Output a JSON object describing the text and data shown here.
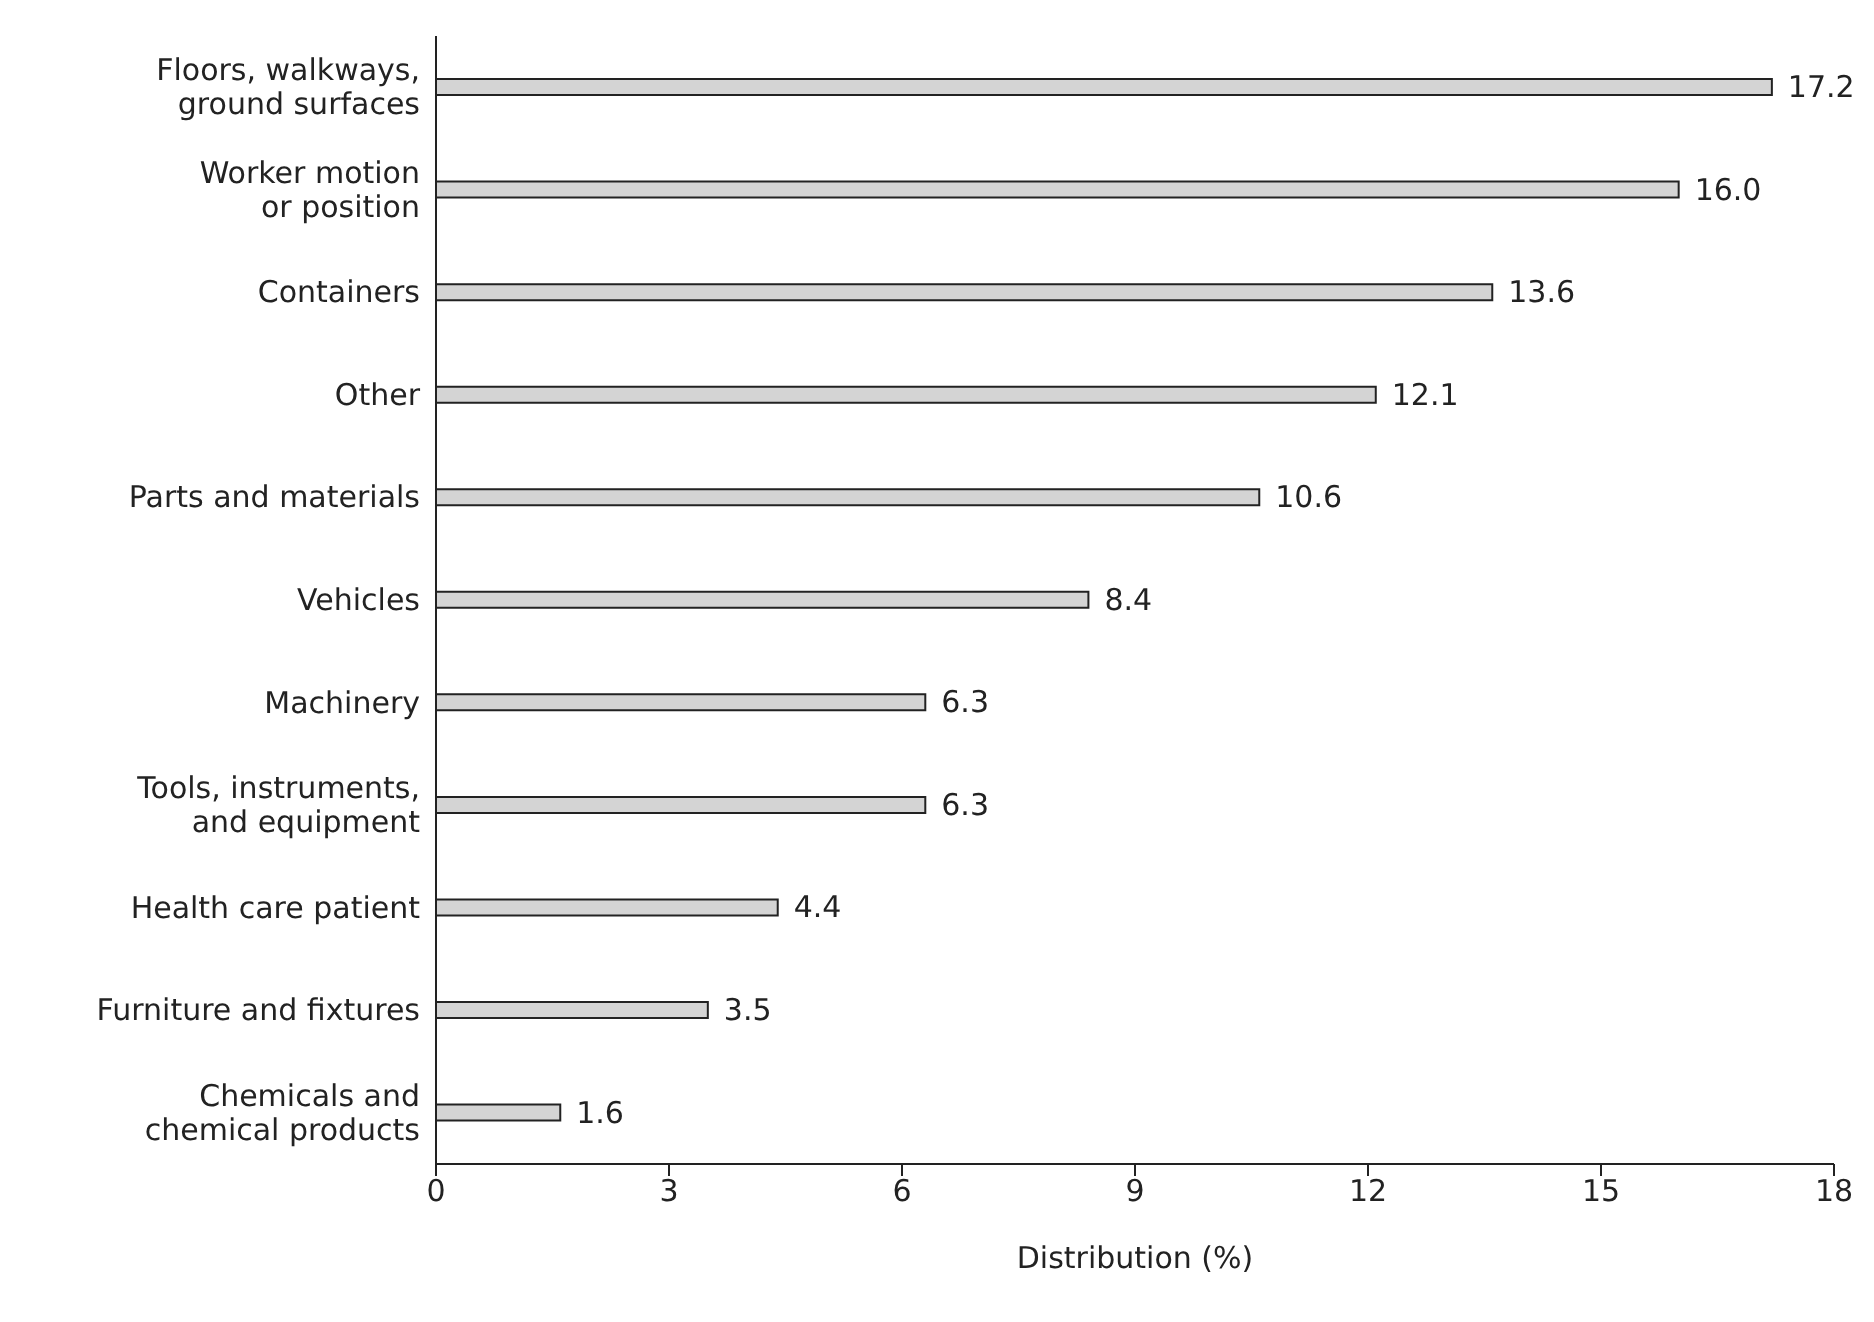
{
  "chart_data": {
    "type": "bar",
    "orientation": "horizontal",
    "xlabel": "Distribution (%)",
    "categories": [
      "Floors, walkways, ground surfaces",
      "Worker motion or position",
      "Containers",
      "Other",
      "Parts and materials",
      "Vehicles",
      "Machinery",
      "Tools, instruments, and equipment",
      "Health care patient",
      "Furniture and fixtures",
      "Chemicals and chemical products"
    ],
    "values": [
      17.2,
      16.0,
      13.6,
      12.1,
      10.6,
      8.4,
      6.3,
      6.3,
      4.4,
      3.5,
      1.6
    ],
    "value_labels": [
      "17.2",
      "16.0",
      "13.6",
      "12.1",
      "10.6",
      "8.4",
      "6.3",
      "6.3",
      "4.4",
      "3.5",
      "1.6"
    ],
    "color": "#d4d4d4",
    "xlim": [
      0,
      18
    ],
    "xticks": [
      0,
      3,
      6,
      9,
      12,
      15,
      18
    ],
    "grid": false,
    "legend": false
  }
}
